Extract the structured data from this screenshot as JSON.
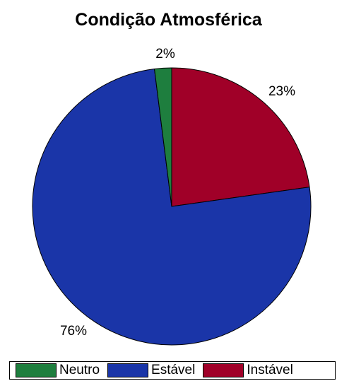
{
  "chart_data": {
    "type": "pie",
    "title": "Condição Atmosférica",
    "slices": [
      {
        "label": "Instável",
        "value": 23,
        "value_label": "23%",
        "color": "#a00028"
      },
      {
        "label": "Estável",
        "value": 76,
        "value_label": "76%",
        "color": "#1a35a8"
      },
      {
        "label": "Neutro",
        "value": 2,
        "value_label": "2%",
        "color": "#1e7e3e"
      }
    ],
    "legend": {
      "placement": "bottom",
      "entries": [
        {
          "label": "Neutro",
          "color": "#1e7e3e"
        },
        {
          "label": "Estável",
          "color": "#1a35a8"
        },
        {
          "label": "Instável",
          "color": "#a00028"
        }
      ]
    }
  }
}
